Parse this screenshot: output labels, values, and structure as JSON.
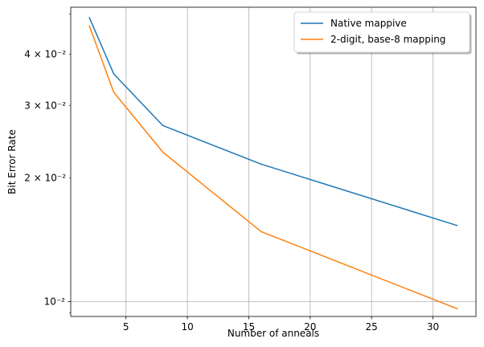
{
  "chart_data": {
    "type": "line",
    "xlabel": "Number of anneals",
    "ylabel": "Bit Error Rate",
    "xlim": [
      0.5,
      33.5
    ],
    "ylim": [
      0.0092,
      0.052
    ],
    "yscale": "log",
    "grid": "x-major and y-major",
    "legend_position": "top-right",
    "x_ticks": [
      5,
      10,
      15,
      20,
      25,
      30
    ],
    "x_tick_labels": [
      "5",
      "10",
      "15",
      "20",
      "25",
      "30"
    ],
    "y_major_ticks": [
      0.01
    ],
    "y_major_tick_labels": [
      "10⁻²"
    ],
    "y_minor_ticks": [
      0.02,
      0.03,
      0.04
    ],
    "y_minor_tick_labels": [
      "2 × 10⁻²",
      "3 × 10⁻²",
      "4 × 10⁻²"
    ],
    "y_minor_unlabeled": [
      0.05,
      0.06,
      0.07,
      0.08,
      0.09
    ],
    "series": [
      {
        "name": "Native mappive",
        "color": "#1f77b4",
        "x": [
          2,
          4,
          8,
          16,
          32
        ],
        "y": [
          0.0492,
          0.0358,
          0.0268,
          0.0216,
          0.0153
        ]
      },
      {
        "name": "2-digit, base-8 mapping",
        "color": "#ff7f0e",
        "x": [
          2,
          4,
          8,
          16,
          32
        ],
        "y": [
          0.047,
          0.0323,
          0.0231,
          0.0148,
          0.0096
        ]
      }
    ]
  }
}
